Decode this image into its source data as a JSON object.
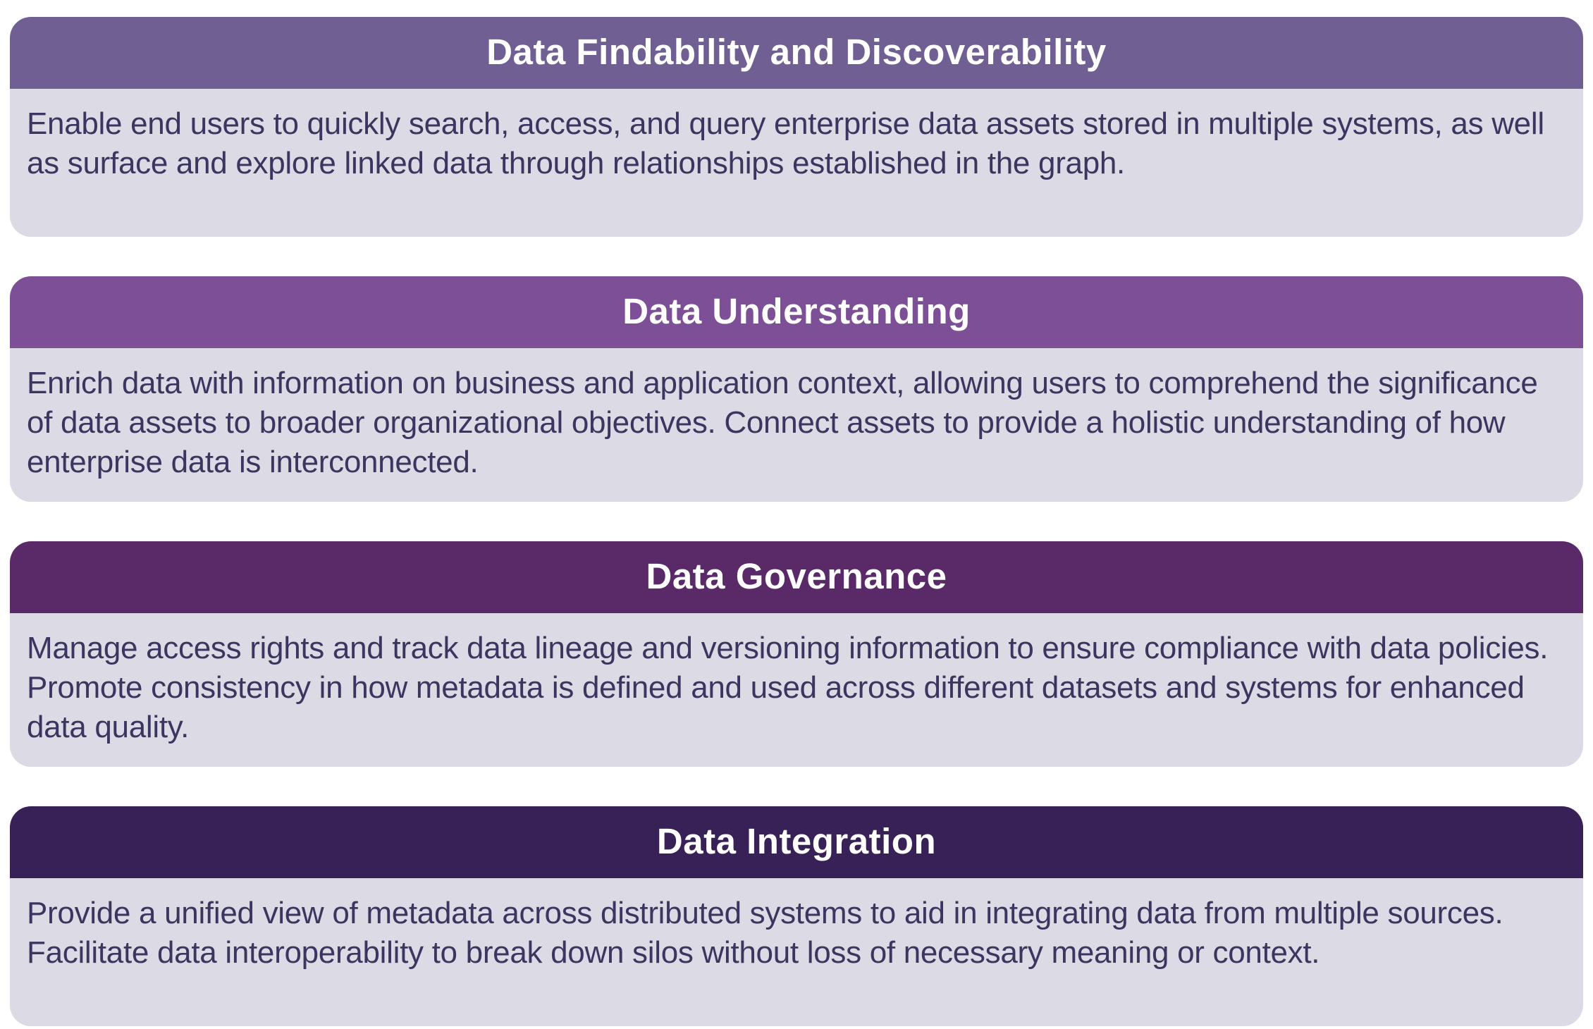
{
  "colors": {
    "page_background": "#ffffff",
    "body_background": "#dcdae5",
    "body_text": "#3b3660",
    "header_text": "#ffffff"
  },
  "cards": [
    {
      "title": "Data Findability and Discoverability",
      "header_color": "#6f5f93",
      "body": "Enable end users to quickly search, access, and query enterprise data assets stored in multiple systems, as well as surface and explore linked data through relationships established in the graph."
    },
    {
      "title": "Data Understanding",
      "header_color": "#7d4f96",
      "body": "Enrich data with information on business and application context, allowing users to comprehend the significance of data assets to broader organizational objectives. Connect assets to provide a holistic understanding of how enterprise data is interconnected."
    },
    {
      "title": "Data Governance",
      "header_color": "#5a2968",
      "body": "Manage access rights and track data lineage and versioning information to ensure compliance with data policies. Promote consistency in how metadata is defined and used across different datasets and systems for enhanced data quality."
    },
    {
      "title": "Data Integration",
      "header_color": "#372157",
      "body": "Provide a unified view of metadata across distributed systems to aid in integrating data from multiple sources. Facilitate data interoperability to break down silos without loss of necessary meaning or context."
    }
  ]
}
